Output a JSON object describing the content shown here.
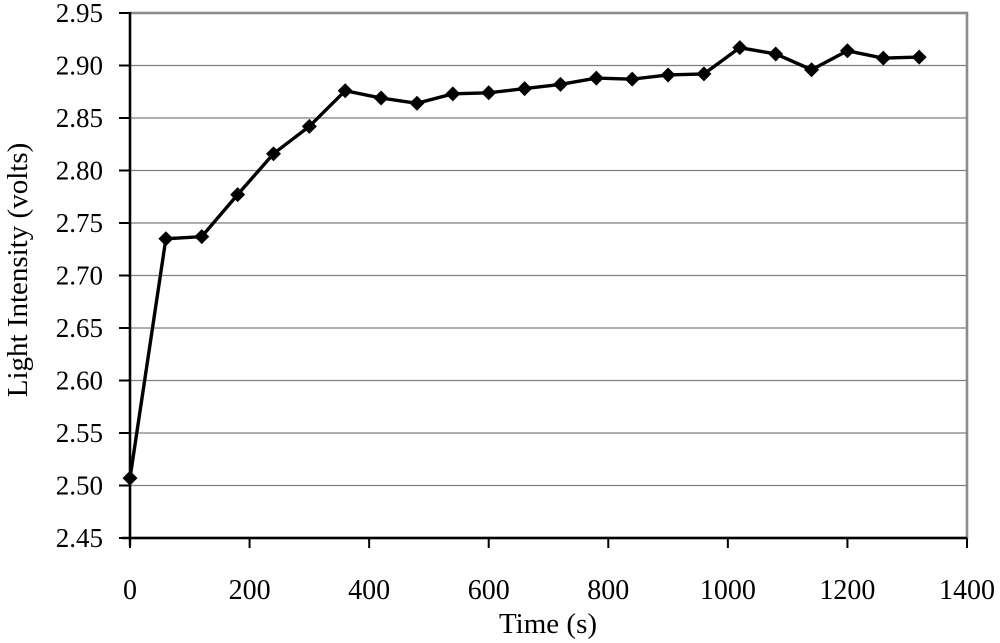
{
  "chart_data": {
    "type": "line",
    "title": "",
    "xlabel": "Time (s)",
    "ylabel": "Light Intensity (volts)",
    "xlim": [
      0,
      1400
    ],
    "ylim": [
      2.45,
      2.95
    ],
    "xtick_step": 200,
    "ytick_step": 0.05,
    "xticks": [
      "0",
      "200",
      "400",
      "600",
      "800",
      "1000",
      "1200",
      "1400"
    ],
    "yticks": [
      "2.45",
      "2.50",
      "2.55",
      "2.60",
      "2.65",
      "2.70",
      "2.75",
      "2.80",
      "2.85",
      "2.90",
      "2.95"
    ],
    "grid": "horizontal",
    "legend": "none",
    "marker": "diamond",
    "series": [
      {
        "name": "light-intensity",
        "x": [
          0,
          60,
          120,
          180,
          240,
          300,
          360,
          420,
          480,
          540,
          600,
          660,
          720,
          780,
          840,
          900,
          960,
          1020,
          1080,
          1140,
          1200,
          1260,
          1320
        ],
        "y": [
          2.507,
          2.735,
          2.737,
          2.777,
          2.816,
          2.842,
          2.876,
          2.869,
          2.864,
          2.873,
          2.874,
          2.878,
          2.882,
          2.888,
          2.887,
          2.891,
          2.892,
          2.917,
          2.911,
          2.896,
          2.914,
          2.907,
          2.908
        ]
      }
    ],
    "colors": {
      "line": "#000000",
      "marker": "#000000",
      "gridline": "#7f7f7f",
      "plot_border": "#8c8c8c",
      "axis": "#000000",
      "text": "#000000",
      "background": "#ffffff"
    }
  }
}
